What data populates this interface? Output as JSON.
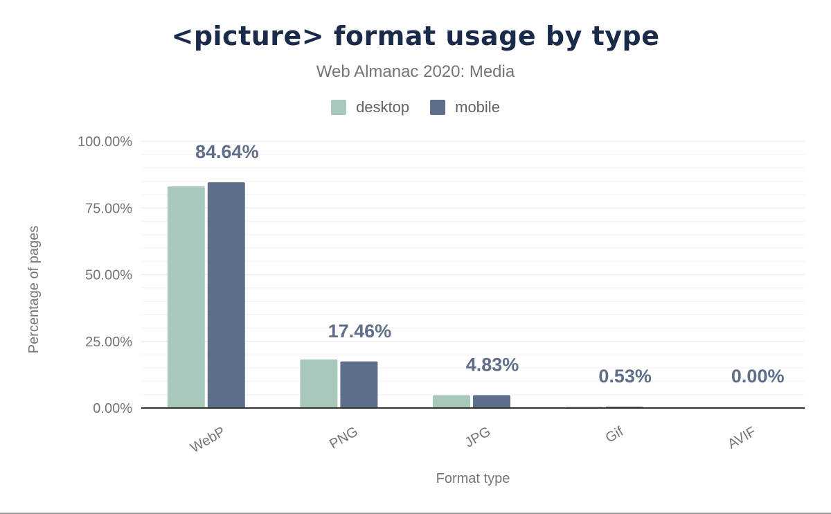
{
  "chart_data": {
    "type": "bar",
    "title": "<picture> format usage by type",
    "subtitle": "Web Almanac 2020: Media",
    "xlabel": "Format type",
    "ylabel": "Percentage of pages",
    "categories": [
      "WebP",
      "PNG",
      "JPG",
      "Gif",
      "AVIF"
    ],
    "series": [
      {
        "name": "desktop",
        "color": "#a8c9b9",
        "values": [
          83.1,
          18.2,
          4.8,
          0.5,
          0.0
        ]
      },
      {
        "name": "mobile",
        "color": "#5f6f8a",
        "values": [
          84.64,
          17.46,
          4.83,
          0.53,
          0.0
        ]
      }
    ],
    "data_labels": [
      "84.64%",
      "17.46%",
      "4.83%",
      "0.53%",
      "0.00%"
    ],
    "yticks": [
      "0.00%",
      "25.00%",
      "50.00%",
      "75.00%",
      "100.00%"
    ],
    "ylim": [
      0,
      100
    ],
    "grid": true,
    "legend_position": "top"
  }
}
